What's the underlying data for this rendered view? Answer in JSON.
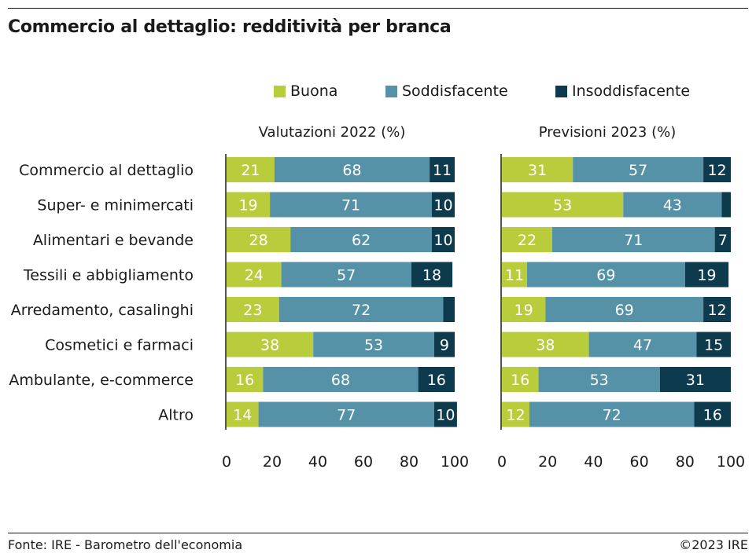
{
  "title": "Commercio al dettaglio: redditività per branca",
  "legend": [
    {
      "label": "Buona",
      "color": "#b9cc3c"
    },
    {
      "label": "Soddisfacente",
      "color": "#5592a8"
    },
    {
      "label": "Insoddisfacente",
      "color": "#0e3a4e"
    }
  ],
  "source": "Fonte: IRE - Barometro dell'economia",
  "copyright": "©2023 IRE",
  "chart_data": {
    "type": "bar",
    "stacked": true,
    "orientation": "horizontal",
    "xlim": [
      0,
      100
    ],
    "ticks": [
      0,
      20,
      40,
      60,
      80,
      100
    ],
    "categories": [
      "Commercio al dettaglio",
      "Super- e minimercati",
      "Alimentari e bevande",
      "Tessili e abbigliamento",
      "Arredamento, casalinghi",
      "Cosmetici e farmaci",
      "Ambulante, e-commerce",
      "Altro"
    ],
    "panels": [
      {
        "title": "Valutazioni 2022 (%)",
        "series": [
          {
            "name": "Buona",
            "values": [
              21,
              19,
              28,
              24,
              23,
              38,
              16,
              14
            ]
          },
          {
            "name": "Soddisfacente",
            "values": [
              68,
              71,
              62,
              57,
              72,
              53,
              68,
              77
            ]
          },
          {
            "name": "Insoddisfacente",
            "values": [
              11,
              10,
              10,
              18,
              5,
              9,
              16,
              10
            ]
          }
        ],
        "labels": [
          [
            "21",
            "68",
            "11"
          ],
          [
            "19",
            "71",
            "10"
          ],
          [
            "28",
            "62",
            "10"
          ],
          [
            "24",
            "57",
            "18"
          ],
          [
            "23",
            "72",
            ""
          ],
          [
            "38",
            "53",
            "9"
          ],
          [
            "16",
            "68",
            "16"
          ],
          [
            "14",
            "77",
            "10"
          ]
        ]
      },
      {
        "title": "Previsioni 2023 (%)",
        "series": [
          {
            "name": "Buona",
            "values": [
              31,
              53,
              22,
              11,
              19,
              38,
              16,
              12
            ]
          },
          {
            "name": "Soddisfacente",
            "values": [
              57,
              43,
              71,
              69,
              69,
              47,
              53,
              72
            ]
          },
          {
            "name": "Insoddisfacente",
            "values": [
              12,
              4,
              7,
              19,
              12,
              15,
              31,
              16
            ]
          }
        ],
        "labels": [
          [
            "31",
            "57",
            "12"
          ],
          [
            "53",
            "43",
            ""
          ],
          [
            "22",
            "71",
            "7"
          ],
          [
            "11",
            "69",
            "19"
          ],
          [
            "19",
            "69",
            "12"
          ],
          [
            "38",
            "47",
            "15"
          ],
          [
            "16",
            "53",
            "31"
          ],
          [
            "12",
            "72",
            "16"
          ]
        ]
      }
    ]
  }
}
